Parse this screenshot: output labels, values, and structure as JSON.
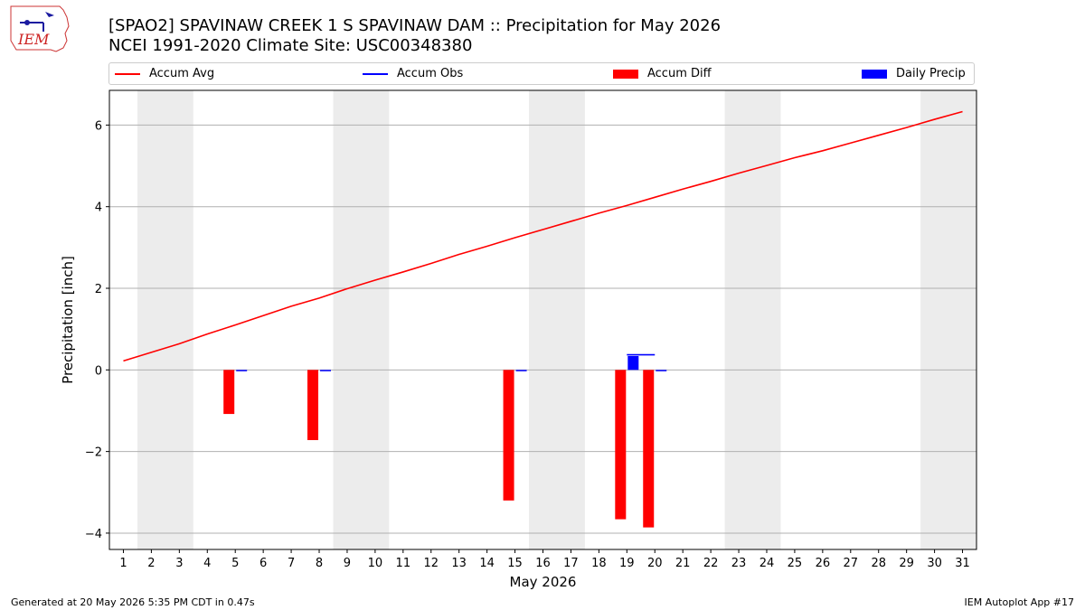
{
  "header": {
    "title_line1": "[SPAO2] SPAVINAW CREEK 1 S SPAVINAW DAM :: Precipitation for May 2026",
    "title_line2": "NCEI 1991-2020 Climate Site: USC00348380",
    "logo_text": "IEM"
  },
  "legend": {
    "items": [
      {
        "label": "Accum Avg",
        "color": "#ff0000",
        "kind": "line"
      },
      {
        "label": "Accum Obs",
        "color": "#0000ff",
        "kind": "line"
      },
      {
        "label": "Accum Diff",
        "color": "#ff0000",
        "kind": "bar"
      },
      {
        "label": "Daily Precip",
        "color": "#0000ff",
        "kind": "bar"
      }
    ]
  },
  "footer": {
    "left": "Generated at 20 May 2026 5:35 PM CDT in 0.47s",
    "right": "IEM Autoplot App #17"
  },
  "chart_data": {
    "type": "bar",
    "xlabel": "May 2026",
    "ylabel": "Precipitation [inch]",
    "xlim": [
      0.5,
      31.5
    ],
    "ylim": [
      -4.4,
      6.85
    ],
    "x_ticks": [
      1,
      2,
      3,
      4,
      5,
      6,
      7,
      8,
      9,
      10,
      11,
      12,
      13,
      14,
      15,
      16,
      17,
      18,
      19,
      20,
      21,
      22,
      23,
      24,
      25,
      26,
      27,
      28,
      29,
      30,
      31
    ],
    "y_ticks": [
      -4,
      -2,
      0,
      2,
      4,
      6
    ],
    "y_tick_labels": [
      "−4",
      "−2",
      "0",
      "2",
      "4",
      "6"
    ],
    "grid": "horizontal",
    "weekend_shading": [
      [
        1.5,
        3.5
      ],
      [
        8.5,
        10.5
      ],
      [
        15.5,
        17.5
      ],
      [
        22.5,
        24.5
      ],
      [
        29.5,
        31.5
      ]
    ],
    "accum_avg": {
      "x": [
        1,
        2,
        3,
        4,
        5,
        6,
        7,
        8,
        9,
        10,
        11,
        12,
        13,
        14,
        15,
        16,
        17,
        18,
        19,
        20,
        21,
        22,
        23,
        24,
        25,
        26,
        27,
        28,
        29,
        30,
        31
      ],
      "values": [
        0.22,
        0.43,
        0.64,
        0.88,
        1.1,
        1.33,
        1.56,
        1.76,
        1.99,
        2.2,
        2.4,
        2.61,
        2.83,
        3.03,
        3.24,
        3.44,
        3.64,
        3.84,
        4.03,
        4.23,
        4.43,
        4.62,
        4.82,
        5.01,
        5.2,
        5.37,
        5.56,
        5.75,
        5.94,
        6.14,
        6.33
      ]
    },
    "accum_obs": {
      "x": [
        19,
        20
      ],
      "values": [
        0.37,
        0.37
      ]
    },
    "accum_diff": {
      "x": [
        5,
        8,
        15,
        19,
        20
      ],
      "values": [
        -1.08,
        -1.72,
        -3.2,
        -3.66,
        -3.86
      ]
    },
    "daily_precip": {
      "x": [
        5,
        8,
        15,
        19,
        20
      ],
      "values": [
        0.0,
        0.0,
        0.0,
        0.34,
        0.0
      ]
    }
  }
}
